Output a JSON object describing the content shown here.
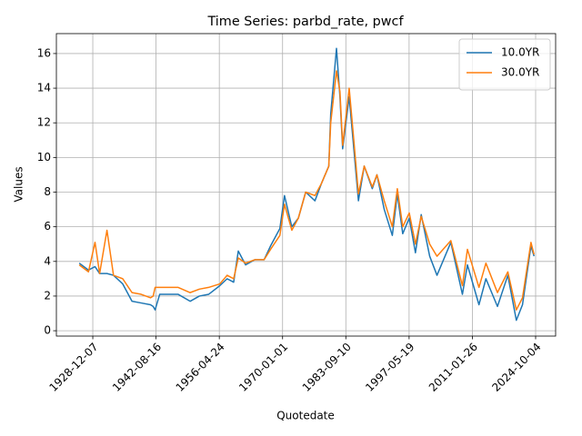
{
  "chart_data": {
    "type": "line",
    "title": "Time Series: parbd_rate, pwcf",
    "x_label": "Quotedate",
    "y_label": "Values",
    "x": [
      "1926-01",
      "1928-01",
      "1929-06",
      "1930-06",
      "1932-01",
      "1933-06",
      "1935-06",
      "1937-06",
      "1939-06",
      "1941-06",
      "1942-01",
      "1942-06",
      "1943-06",
      "1947-06",
      "1950-01",
      "1952-01",
      "1954-01",
      "1956-06",
      "1958-01",
      "1959-06",
      "1960-06",
      "1962-01",
      "1964-01",
      "1966-01",
      "1967-06",
      "1969-06",
      "1970-06",
      "1972-01",
      "1973-06",
      "1975-01",
      "1977-01",
      "1978-06",
      "1980-01",
      "1980-06",
      "1981-09",
      "1982-06",
      "1983-01",
      "1984-06",
      "1985-06",
      "1986-06",
      "1987-09",
      "1989-06",
      "1990-06",
      "1992-01",
      "1993-10",
      "1994-11",
      "1996-01",
      "1997-06",
      "1998-10",
      "2000-01",
      "2001-11",
      "2003-06",
      "2006-06",
      "2008-12",
      "2010-01",
      "2012-07",
      "2014-01",
      "2016-07",
      "2018-10",
      "2020-08",
      "2021-12",
      "2023-10",
      "2024-06"
    ],
    "series": [
      {
        "name": "10.0YR",
        "color": "#1f77b4",
        "values": [
          3.9,
          3.5,
          3.7,
          3.3,
          3.3,
          3.2,
          2.7,
          1.7,
          1.6,
          1.5,
          1.4,
          1.2,
          2.1,
          2.1,
          1.7,
          2.0,
          2.1,
          2.6,
          3.0,
          2.8,
          4.6,
          3.8,
          4.1,
          4.1,
          4.9,
          5.9,
          7.8,
          6.0,
          6.5,
          8.0,
          7.5,
          8.5,
          9.5,
          12.5,
          16.3,
          13.5,
          10.5,
          13.5,
          10.5,
          7.5,
          9.5,
          8.2,
          9.0,
          7.0,
          5.5,
          7.9,
          5.6,
          6.5,
          4.5,
          6.7,
          4.3,
          3.2,
          5.1,
          2.1,
          3.8,
          1.5,
          3.0,
          1.4,
          3.2,
          0.6,
          1.5,
          4.9,
          4.3
        ]
      },
      {
        "name": "30.0YR",
        "color": "#ff7f0e",
        "values": [
          3.8,
          3.4,
          5.1,
          3.3,
          5.8,
          3.2,
          3.0,
          2.2,
          2.1,
          1.9,
          2.0,
          2.5,
          2.5,
          2.5,
          2.2,
          2.4,
          2.5,
          2.7,
          3.2,
          3.0,
          4.2,
          3.9,
          4.1,
          4.1,
          4.7,
          5.5,
          7.3,
          5.8,
          6.5,
          8.0,
          7.8,
          8.5,
          9.5,
          12.0,
          15.0,
          13.8,
          10.7,
          14.0,
          11.0,
          7.9,
          9.5,
          8.3,
          9.0,
          7.5,
          6.0,
          8.2,
          6.0,
          6.8,
          5.0,
          6.6,
          5.0,
          4.3,
          5.2,
          2.6,
          4.7,
          2.5,
          3.9,
          2.2,
          3.4,
          1.2,
          1.9,
          5.1,
          4.4
        ]
      }
    ],
    "xlim": [
      "1921-01-20",
      "2029-02-01"
    ],
    "xticks": [
      "1928-12-07",
      "1942-08-16",
      "1956-04-24",
      "1970-01-01",
      "1983-09-10",
      "1997-05-19",
      "2011-01-26",
      "2024-10-04"
    ],
    "ylim": [
      -0.31,
      17.15
    ],
    "yticks": [
      0,
      2,
      4,
      6,
      8,
      10,
      12,
      14,
      16
    ],
    "grid": true,
    "legend": "upper right"
  }
}
